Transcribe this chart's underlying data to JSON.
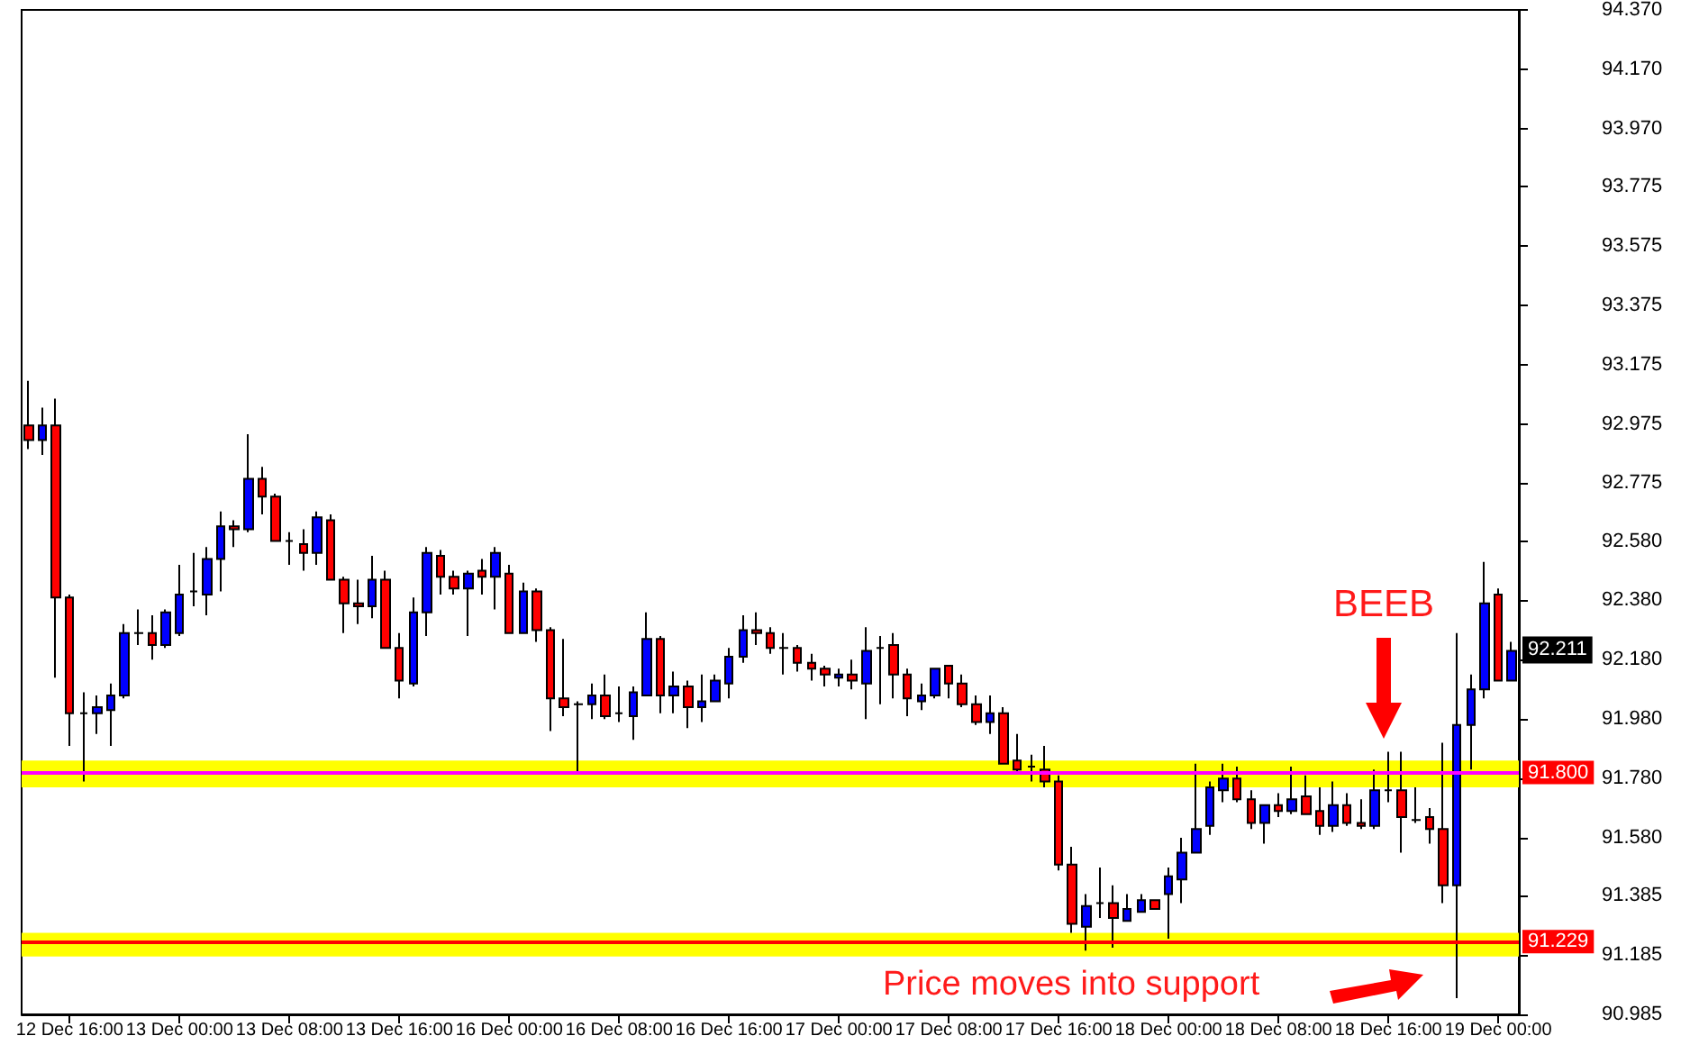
{
  "chart_data": {
    "type": "candlestick",
    "categories": [
      null,
      null,
      null,
      "12 Dec 16:00",
      null,
      null,
      null,
      null,
      null,
      null,
      null,
      "13 Dec 00:00",
      null,
      null,
      null,
      null,
      null,
      null,
      null,
      "13 Dec 08:00",
      null,
      null,
      null,
      null,
      null,
      null,
      null,
      "13 Dec 16:00",
      null,
      null,
      null,
      null,
      null,
      null,
      null,
      "16 Dec 00:00",
      null,
      null,
      null,
      null,
      null,
      null,
      null,
      "16 Dec 08:00",
      null,
      null,
      null,
      null,
      null,
      null,
      null,
      "16 Dec 16:00",
      null,
      null,
      null,
      null,
      null,
      null,
      null,
      "17 Dec 00:00",
      null,
      null,
      null,
      null,
      null,
      null,
      null,
      "17 Dec 08:00",
      null,
      null,
      null,
      null,
      null,
      null,
      null,
      "17 Dec 16:00",
      null,
      null,
      null,
      null,
      null,
      null,
      null,
      "18 Dec 00:00",
      null,
      null,
      null,
      null,
      null,
      null,
      null,
      "18 Dec 08:00",
      null,
      null,
      null,
      null,
      null,
      null,
      null,
      "18 Dec 16:00",
      null,
      null,
      null,
      null,
      null,
      null,
      null,
      "19 Dec 00:00",
      null
    ],
    "ohlc": [
      [
        92.97,
        93.12,
        92.89,
        92.92
      ],
      [
        92.92,
        93.03,
        92.87,
        92.97
      ],
      [
        92.97,
        93.06,
        92.12,
        92.39
      ],
      [
        92.39,
        92.4,
        91.89,
        92.0
      ],
      [
        92.0,
        92.07,
        91.77,
        92.0
      ],
      [
        92.0,
        92.06,
        91.93,
        92.02
      ],
      [
        92.01,
        92.1,
        91.89,
        92.06
      ],
      [
        92.06,
        92.3,
        92.05,
        92.27
      ],
      [
        92.27,
        92.35,
        92.23,
        92.27
      ],
      [
        92.27,
        92.33,
        92.18,
        92.23
      ],
      [
        92.23,
        92.35,
        92.22,
        92.34
      ],
      [
        92.27,
        92.5,
        92.26,
        92.4
      ],
      [
        92.41,
        92.54,
        92.36,
        92.41
      ],
      [
        92.4,
        92.56,
        92.33,
        92.52
      ],
      [
        92.52,
        92.68,
        92.41,
        92.63
      ],
      [
        92.63,
        92.65,
        92.56,
        92.62
      ],
      [
        92.62,
        92.94,
        92.61,
        92.79
      ],
      [
        92.79,
        92.83,
        92.67,
        92.73
      ],
      [
        92.73,
        92.74,
        92.58,
        92.58
      ],
      [
        92.58,
        92.61,
        92.5,
        92.58
      ],
      [
        92.57,
        92.62,
        92.48,
        92.54
      ],
      [
        92.54,
        92.68,
        92.5,
        92.66
      ],
      [
        92.65,
        92.67,
        92.45,
        92.45
      ],
      [
        92.45,
        92.46,
        92.27,
        92.37
      ],
      [
        92.37,
        92.45,
        92.3,
        92.36
      ],
      [
        92.36,
        92.53,
        92.32,
        92.45
      ],
      [
        92.45,
        92.48,
        92.22,
        92.22
      ],
      [
        92.22,
        92.27,
        92.05,
        92.11
      ],
      [
        92.1,
        92.39,
        92.09,
        92.34
      ],
      [
        92.34,
        92.56,
        92.26,
        92.54
      ],
      [
        92.53,
        92.55,
        92.4,
        92.46
      ],
      [
        92.46,
        92.48,
        92.4,
        92.42
      ],
      [
        92.42,
        92.48,
        92.26,
        92.47
      ],
      [
        92.48,
        92.52,
        92.4,
        92.46
      ],
      [
        92.46,
        92.56,
        92.35,
        92.54
      ],
      [
        92.47,
        92.5,
        92.27,
        92.27
      ],
      [
        92.27,
        92.44,
        92.27,
        92.41
      ],
      [
        92.41,
        92.42,
        92.24,
        92.28
      ],
      [
        92.28,
        92.29,
        91.94,
        92.05
      ],
      [
        92.05,
        92.25,
        91.99,
        92.02
      ],
      [
        92.03,
        92.04,
        91.8,
        92.03
      ],
      [
        92.03,
        92.1,
        91.98,
        92.06
      ],
      [
        92.06,
        92.13,
        91.98,
        91.99
      ],
      [
        92.0,
        92.09,
        91.97,
        92.0
      ],
      [
        91.99,
        92.09,
        91.91,
        92.07
      ],
      [
        92.06,
        92.34,
        92.06,
        92.25
      ],
      [
        92.25,
        92.26,
        92.0,
        92.06
      ],
      [
        92.06,
        92.14,
        92.0,
        92.09
      ],
      [
        92.09,
        92.11,
        91.95,
        92.02
      ],
      [
        92.02,
        92.13,
        91.97,
        92.04
      ],
      [
        92.04,
        92.13,
        92.04,
        92.11
      ],
      [
        92.1,
        92.22,
        92.05,
        92.19
      ],
      [
        92.19,
        92.33,
        92.17,
        92.28
      ],
      [
        92.28,
        92.34,
        92.23,
        92.27
      ],
      [
        92.27,
        92.29,
        92.2,
        92.22
      ],
      [
        92.22,
        92.27,
        92.13,
        92.22
      ],
      [
        92.22,
        92.23,
        92.14,
        92.17
      ],
      [
        92.17,
        92.2,
        92.11,
        92.15
      ],
      [
        92.15,
        92.16,
        92.09,
        92.13
      ],
      [
        92.12,
        92.15,
        92.09,
        92.13
      ],
      [
        92.13,
        92.18,
        92.08,
        92.11
      ],
      [
        92.1,
        92.29,
        91.98,
        92.21
      ],
      [
        92.22,
        92.26,
        92.03,
        92.22
      ],
      [
        92.23,
        92.27,
        92.05,
        92.13
      ],
      [
        92.13,
        92.15,
        91.99,
        92.05
      ],
      [
        92.04,
        92.1,
        92.01,
        92.06
      ],
      [
        92.06,
        92.15,
        92.05,
        92.15
      ],
      [
        92.16,
        92.16,
        92.05,
        92.1
      ],
      [
        92.1,
        92.13,
        92.02,
        92.03
      ],
      [
        92.03,
        92.06,
        91.96,
        91.97
      ],
      [
        91.97,
        92.06,
        91.93,
        92.0
      ],
      [
        92.0,
        92.02,
        91.83,
        91.83
      ],
      [
        91.84,
        91.93,
        91.8,
        91.81
      ],
      [
        91.82,
        91.86,
        91.77,
        91.82
      ],
      [
        91.81,
        91.89,
        91.75,
        91.77
      ],
      [
        91.77,
        91.79,
        91.47,
        91.49
      ],
      [
        91.49,
        91.55,
        91.26,
        91.29
      ],
      [
        91.28,
        91.39,
        91.2,
        91.35
      ],
      [
        91.36,
        91.48,
        91.31,
        91.36
      ],
      [
        91.36,
        91.42,
        91.21,
        91.31
      ],
      [
        91.3,
        91.39,
        91.3,
        91.34
      ],
      [
        91.33,
        91.39,
        91.33,
        91.37
      ],
      [
        91.37,
        91.37,
        91.34,
        91.34
      ],
      [
        91.39,
        91.48,
        91.24,
        91.45
      ],
      [
        91.44,
        91.58,
        91.36,
        91.53
      ],
      [
        91.53,
        91.83,
        91.53,
        91.61
      ],
      [
        91.62,
        91.77,
        91.59,
        91.75
      ],
      [
        91.74,
        91.83,
        91.7,
        91.78
      ],
      [
        91.78,
        91.82,
        91.7,
        91.71
      ],
      [
        91.71,
        91.74,
        91.61,
        91.63
      ],
      [
        91.63,
        91.69,
        91.56,
        91.69
      ],
      [
        91.69,
        91.73,
        91.65,
        91.67
      ],
      [
        91.67,
        91.82,
        91.66,
        91.71
      ],
      [
        91.72,
        91.79,
        91.66,
        91.66
      ],
      [
        91.67,
        91.75,
        91.59,
        91.62
      ],
      [
        91.62,
        91.77,
        91.6,
        91.69
      ],
      [
        91.69,
        91.73,
        91.62,
        91.63
      ],
      [
        91.63,
        91.71,
        91.61,
        91.62
      ],
      [
        91.62,
        91.81,
        91.61,
        91.74
      ],
      [
        91.74,
        91.87,
        91.7,
        91.74
      ],
      [
        91.74,
        91.87,
        91.53,
        91.65
      ],
      [
        91.64,
        91.75,
        91.63,
        91.64
      ],
      [
        91.65,
        91.68,
        91.56,
        91.61
      ],
      [
        91.61,
        91.9,
        91.36,
        91.42
      ],
      [
        91.42,
        92.27,
        91.04,
        91.96
      ],
      [
        91.96,
        92.13,
        91.81,
        92.08
      ],
      [
        92.08,
        92.51,
        92.05,
        92.37
      ],
      [
        92.4,
        92.42,
        92.11,
        92.11
      ],
      [
        92.11,
        92.24,
        92.11,
        92.21
      ]
    ],
    "colors": [
      "#ff0000",
      "#0000ff",
      "#ff0000",
      "#ff0000",
      "#000000",
      "#0000ff",
      "#0000ff",
      "#0000ff",
      "#000000",
      "#ff0000",
      "#0000ff",
      "#0000ff",
      "#000000",
      "#0000ff",
      "#0000ff",
      "#ff0000",
      "#0000ff",
      "#ff0000",
      "#ff0000",
      "#000000",
      "#ff0000",
      "#0000ff",
      "#ff0000",
      "#ff0000",
      "#ff0000",
      "#0000ff",
      "#ff0000",
      "#ff0000",
      "#0000ff",
      "#0000ff",
      "#ff0000",
      "#ff0000",
      "#0000ff",
      "#ff0000",
      "#0000ff",
      "#ff0000",
      "#0000ff",
      "#ff0000",
      "#ff0000",
      "#ff0000",
      "#000000",
      "#0000ff",
      "#ff0000",
      "#000000",
      "#0000ff",
      "#0000ff",
      "#ff0000",
      "#0000ff",
      "#ff0000",
      "#0000ff",
      "#0000ff",
      "#0000ff",
      "#0000ff",
      "#ff0000",
      "#ff0000",
      "#000000",
      "#ff0000",
      "#ff0000",
      "#ff0000",
      "#0000ff",
      "#ff0000",
      "#0000ff",
      "#000000",
      "#ff0000",
      "#ff0000",
      "#0000ff",
      "#0000ff",
      "#ff0000",
      "#ff0000",
      "#ff0000",
      "#0000ff",
      "#ff0000",
      "#ff0000",
      "#000000",
      "#ff0000",
      "#ff0000",
      "#ff0000",
      "#0000ff",
      "#000000",
      "#ff0000",
      "#0000ff",
      "#0000ff",
      "#ff0000",
      "#0000ff",
      "#0000ff",
      "#0000ff",
      "#0000ff",
      "#0000ff",
      "#ff0000",
      "#ff0000",
      "#0000ff",
      "#ff0000",
      "#0000ff",
      "#ff0000",
      "#ff0000",
      "#0000ff",
      "#ff0000",
      "#ff0000",
      "#0000ff",
      "#000000",
      "#ff0000",
      "#000000",
      "#ff0000",
      "#ff0000",
      "#0000ff",
      "#0000ff",
      "#0000ff",
      "#ff0000",
      "#0000ff"
    ],
    "ylim": [
      90.985,
      94.37
    ],
    "yticks": [
      {
        "value": 90.985,
        "label": "90.985"
      },
      {
        "value": 91.185,
        "label": "91.185"
      },
      {
        "value": 91.385,
        "label": "91.385"
      },
      {
        "value": 91.58,
        "label": "91.580"
      },
      {
        "value": 91.78,
        "label": "91.780"
      },
      {
        "value": 91.98,
        "label": "91.980"
      },
      {
        "value": 92.18,
        "label": "92.180"
      },
      {
        "value": 92.38,
        "label": "92.380"
      },
      {
        "value": 92.58,
        "label": "92.580"
      },
      {
        "value": 92.775,
        "label": "92.775"
      },
      {
        "value": 92.975,
        "label": "92.975"
      },
      {
        "value": 93.175,
        "label": "93.175"
      },
      {
        "value": 93.375,
        "label": "93.375"
      },
      {
        "value": 93.575,
        "label": "93.575"
      },
      {
        "value": 93.775,
        "label": "93.775"
      },
      {
        "value": 93.97,
        "label": "93.970"
      },
      {
        "value": 94.17,
        "label": "94.170"
      },
      {
        "value": 94.37,
        "label": "94.370"
      }
    ],
    "ref_lines": [
      {
        "axis": "y",
        "value": 91.8,
        "label": "91.800",
        "color": "#ff00ff"
      },
      {
        "axis": "y",
        "value": 91.229,
        "label": "91.229",
        "color": "#ff0000"
      }
    ],
    "bands": [
      {
        "axis": "y",
        "from": 91.75,
        "to": 91.84,
        "color": "#ffff00"
      },
      {
        "axis": "y",
        "from": 91.18,
        "to": 91.26,
        "color": "#ffff00"
      }
    ],
    "annotations": [
      "BEEB",
      "Price moves into support",
      "92.211"
    ]
  }
}
